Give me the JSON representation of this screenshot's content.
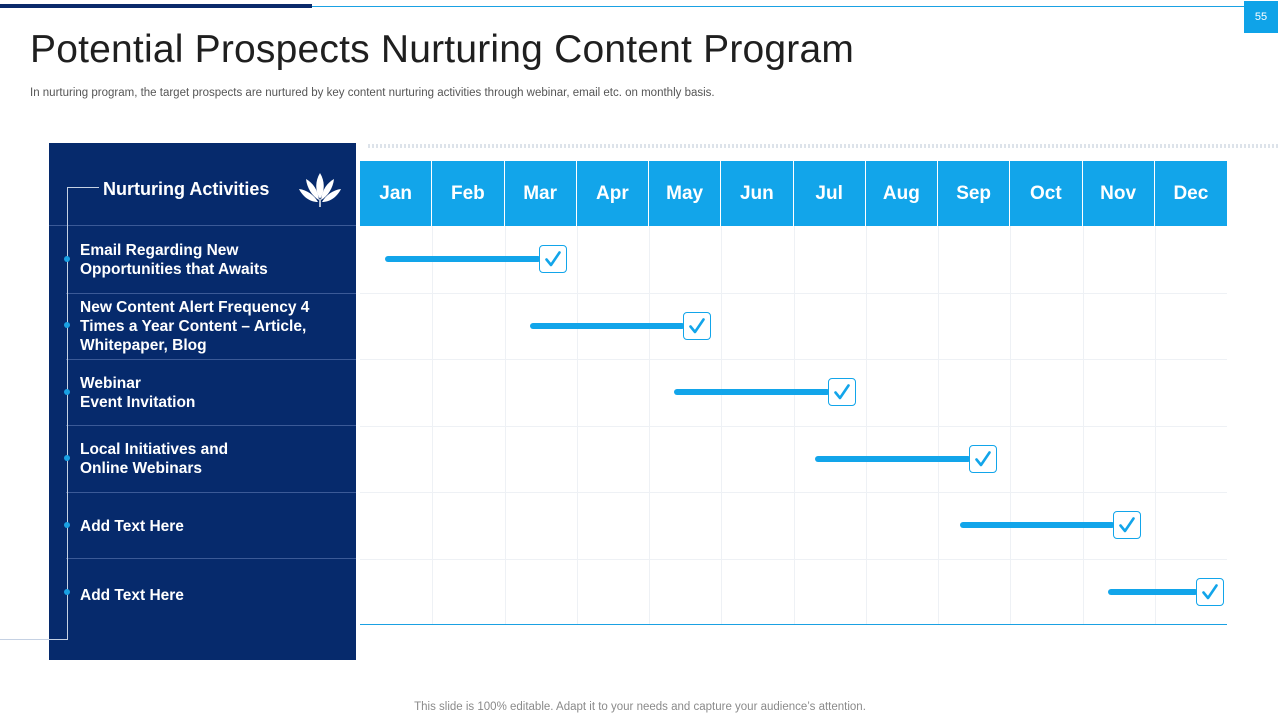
{
  "slide": {
    "page_number": "55",
    "title": "Potential Prospects Nurturing Content Program",
    "subtitle": "In nurturing program, the target prospects are nurtured by key content nurturing activities through webinar, email etc. on monthly basis.",
    "footer": "This slide is 100% editable. Adapt it to your needs and capture your audience’s attention."
  },
  "panel": {
    "title": "Nurturing Activities",
    "icon": "leaf-icon",
    "activities": [
      "Email Regarding New\nOpportunities that Awaits",
      "New Content  Alert Frequency 4\nTimes a Year Content – Article,\nWhitepaper, Blog",
      "Webinar\nEvent Invitation",
      "Local Initiatives  and\nOnline Webinars",
      "Add Text Here",
      "Add Text Here"
    ]
  },
  "timeline": {
    "months": [
      "Jan",
      "Feb",
      "Mar",
      "Apr",
      "May",
      "Jun",
      "Jul",
      "Aug",
      "Sep",
      "Oct",
      "Nov",
      "Dec"
    ],
    "tasks": [
      {
        "start_month": 0.35,
        "end_month": 2.5,
        "icon": "check-icon"
      },
      {
        "start_month": 2.35,
        "end_month": 4.5,
        "icon": "check-icon"
      },
      {
        "start_month": 4.35,
        "end_month": 6.5,
        "icon": "check-icon"
      },
      {
        "start_month": 6.3,
        "end_month": 8.45,
        "icon": "check-icon"
      },
      {
        "start_month": 8.3,
        "end_month": 10.45,
        "icon": "check-icon"
      },
      {
        "start_month": 10.35,
        "end_month": 11.6,
        "icon": "check-icon"
      }
    ],
    "accent_color": "#12a5ea",
    "panel_color": "#062a6c"
  }
}
